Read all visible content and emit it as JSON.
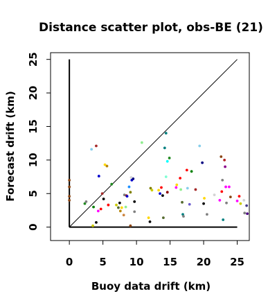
{
  "chart_data": {
    "type": "scatter",
    "title": "Distance scatter plot, obs-BE (21)",
    "xlabel": "Buoy data drift (km)",
    "ylabel": "Forecast drift (km)",
    "xlim": [
      -2.8,
      26.8
    ],
    "ylim": [
      -2.0,
      26.0
    ],
    "xticks": [
      0,
      5,
      10,
      15,
      20,
      25
    ],
    "yticks": [
      0,
      5,
      10,
      15,
      20,
      25
    ],
    "grid": false,
    "legend": "none",
    "reference_lines": [
      {
        "name": "y-axis line",
        "x": [
          0,
          0
        ],
        "y": [
          0,
          25
        ],
        "color": "#000000"
      },
      {
        "name": "x-axis line",
        "x": [
          0,
          25
        ],
        "y": [
          0,
          0
        ],
        "color": "#000000"
      },
      {
        "name": "one-to-one line",
        "x": [
          0,
          25
        ],
        "y": [
          0,
          25
        ],
        "color": "#000000"
      }
    ],
    "points": [
      {
        "x": 0.0,
        "y": 7.0,
        "color": "#8b4513"
      },
      {
        "x": 0.0,
        "y": 6.0,
        "color": "#8b4513"
      },
      {
        "x": 0.0,
        "y": 4.6,
        "color": "#8b4513"
      },
      {
        "x": 0.0,
        "y": 4.0,
        "color": "#8b4513"
      },
      {
        "x": 2.3,
        "y": 3.5,
        "color": "#228b22"
      },
      {
        "x": 2.5,
        "y": 3.8,
        "color": "#808080"
      },
      {
        "x": 3.3,
        "y": 11.6,
        "color": "#87ceeb"
      },
      {
        "x": 3.5,
        "y": 0.2,
        "color": "#cccc00"
      },
      {
        "x": 3.6,
        "y": 3.0,
        "color": "#008000"
      },
      {
        "x": 4.0,
        "y": 12.1,
        "color": "#a52a2a"
      },
      {
        "x": 4.0,
        "y": 0.7,
        "color": "#000000"
      },
      {
        "x": 4.3,
        "y": 2.4,
        "color": "#ff00ff"
      },
      {
        "x": 4.4,
        "y": 7.6,
        "color": "#0000cd"
      },
      {
        "x": 4.7,
        "y": 2.7,
        "color": "#ff0000"
      },
      {
        "x": 4.9,
        "y": 5.0,
        "color": "#a52a2a"
      },
      {
        "x": 5.3,
        "y": 9.3,
        "color": "#ffd700"
      },
      {
        "x": 5.6,
        "y": 9.1,
        "color": "#b8860b"
      },
      {
        "x": 5.8,
        "y": 3.3,
        "color": "#ff0000"
      },
      {
        "x": 5.1,
        "y": 4.2,
        "color": "#000000"
      },
      {
        "x": 6.3,
        "y": 6.4,
        "color": "#228b22"
      },
      {
        "x": 7.0,
        "y": 3.3,
        "color": "#cccc00"
      },
      {
        "x": 7.3,
        "y": 2.9,
        "color": "#556b2f"
      },
      {
        "x": 7.5,
        "y": 3.6,
        "color": "#000000"
      },
      {
        "x": 7.6,
        "y": 2.4,
        "color": "#b8860b"
      },
      {
        "x": 7.8,
        "y": 2.9,
        "color": "#ffd700"
      },
      {
        "x": 8.1,
        "y": 1.8,
        "color": "#cd853f"
      },
      {
        "x": 8.2,
        "y": 4.8,
        "color": "#808080"
      },
      {
        "x": 8.4,
        "y": 3.0,
        "color": "#90ee90"
      },
      {
        "x": 8.5,
        "y": 4.7,
        "color": "#a52a2a"
      },
      {
        "x": 8.6,
        "y": 4.6,
        "color": "#0000cd"
      },
      {
        "x": 8.9,
        "y": 6.0,
        "color": "#1e90ff"
      },
      {
        "x": 9.1,
        "y": 5.2,
        "color": "#808000"
      },
      {
        "x": 9.1,
        "y": 0.2,
        "color": "#8b4513"
      },
      {
        "x": 9.3,
        "y": 7.0,
        "color": "#0000cd"
      },
      {
        "x": 9.5,
        "y": 7.2,
        "color": "#000080"
      },
      {
        "x": 9.7,
        "y": 3.8,
        "color": "#000000"
      },
      {
        "x": 9.7,
        "y": 2.3,
        "color": "#808080"
      },
      {
        "x": 9.2,
        "y": 7.4,
        "color": "#d3d3d3"
      },
      {
        "x": 10.8,
        "y": 12.6,
        "color": "#90ee90"
      },
      {
        "x": 11.8,
        "y": 1.4,
        "color": "#ffd700"
      },
      {
        "x": 12.0,
        "y": 0.8,
        "color": "#000000"
      },
      {
        "x": 12.1,
        "y": 5.8,
        "color": "#808000"
      },
      {
        "x": 12.3,
        "y": 5.5,
        "color": "#cccc00"
      },
      {
        "x": 13.3,
        "y": 5.5,
        "color": "#ffd700"
      },
      {
        "x": 13.5,
        "y": 5.0,
        "color": "#0000cd"
      },
      {
        "x": 13.9,
        "y": 4.7,
        "color": "#000000"
      },
      {
        "x": 13.7,
        "y": 5.9,
        "color": "#ff0000"
      },
      {
        "x": 14.0,
        "y": 1.4,
        "color": "#556b2f"
      },
      {
        "x": 14.2,
        "y": 11.8,
        "color": "#008080"
      },
      {
        "x": 14.4,
        "y": 7.5,
        "color": "#7fffd4"
      },
      {
        "x": 14.4,
        "y": 14.0,
        "color": "#008080"
      },
      {
        "x": 14.6,
        "y": 9.8,
        "color": "#00ffff"
      },
      {
        "x": 14.6,
        "y": 5.2,
        "color": "#8b0000"
      },
      {
        "x": 14.9,
        "y": 10.3,
        "color": "#228b22"
      },
      {
        "x": 15.9,
        "y": 5.9,
        "color": "#ff00ff"
      },
      {
        "x": 16.0,
        "y": 6.3,
        "color": "#ffd700"
      },
      {
        "x": 16.5,
        "y": 7.3,
        "color": "#ff0000"
      },
      {
        "x": 16.6,
        "y": 5.6,
        "color": "#90ee90"
      },
      {
        "x": 16.8,
        "y": 3.7,
        "color": "#556b2f"
      },
      {
        "x": 16.9,
        "y": 1.9,
        "color": "#008080"
      },
      {
        "x": 17.0,
        "y": 1.6,
        "color": "#808080"
      },
      {
        "x": 17.5,
        "y": 8.5,
        "color": "#ff0000"
      },
      {
        "x": 17.6,
        "y": 5.8,
        "color": "#87ceeb"
      },
      {
        "x": 17.9,
        "y": 3.4,
        "color": "#6a5acd"
      },
      {
        "x": 18.2,
        "y": 8.3,
        "color": "#008000"
      },
      {
        "x": 18.8,
        "y": 5.6,
        "color": "#a52a2a"
      },
      {
        "x": 19.4,
        "y": 12.1,
        "color": "#87ceeb"
      },
      {
        "x": 19.8,
        "y": 9.6,
        "color": "#000080"
      },
      {
        "x": 20.0,
        "y": 3.5,
        "color": "#000000"
      },
      {
        "x": 20.1,
        "y": 4.3,
        "color": "#ffd700"
      },
      {
        "x": 20.5,
        "y": 1.9,
        "color": "#808080"
      },
      {
        "x": 21.6,
        "y": 4.8,
        "color": "#d3d3d3"
      },
      {
        "x": 22.4,
        "y": 4.0,
        "color": "#ff00ff"
      },
      {
        "x": 22.6,
        "y": 10.5,
        "color": "#8b4513"
      },
      {
        "x": 22.7,
        "y": 5.3,
        "color": "#ff0000"
      },
      {
        "x": 22.8,
        "y": 7.0,
        "color": "#808080"
      },
      {
        "x": 22.9,
        "y": 1.1,
        "color": "#008080"
      },
      {
        "x": 23.1,
        "y": 10.0,
        "color": "#b22222"
      },
      {
        "x": 23.2,
        "y": 9.0,
        "color": "#8b008b"
      },
      {
        "x": 23.3,
        "y": 6.0,
        "color": "#ff00ff"
      },
      {
        "x": 23.4,
        "y": 3.6,
        "color": "#808080"
      },
      {
        "x": 23.8,
        "y": 6.0,
        "color": "#ff00ff"
      },
      {
        "x": 24.0,
        "y": 4.5,
        "color": "#8b4513"
      },
      {
        "x": 25.0,
        "y": 3.9,
        "color": "#ff00ff"
      },
      {
        "x": 25.3,
        "y": 4.6,
        "color": "#ff0000"
      },
      {
        "x": 25.5,
        "y": 3.5,
        "color": "#cccc00"
      },
      {
        "x": 26.0,
        "y": 4.0,
        "color": "#d3d3d3"
      },
      {
        "x": 26.1,
        "y": 2.1,
        "color": "#808080"
      },
      {
        "x": 26.4,
        "y": 3.2,
        "color": "#483d8b"
      },
      {
        "x": 26.5,
        "y": 2.0,
        "color": "#4b0082"
      }
    ]
  }
}
